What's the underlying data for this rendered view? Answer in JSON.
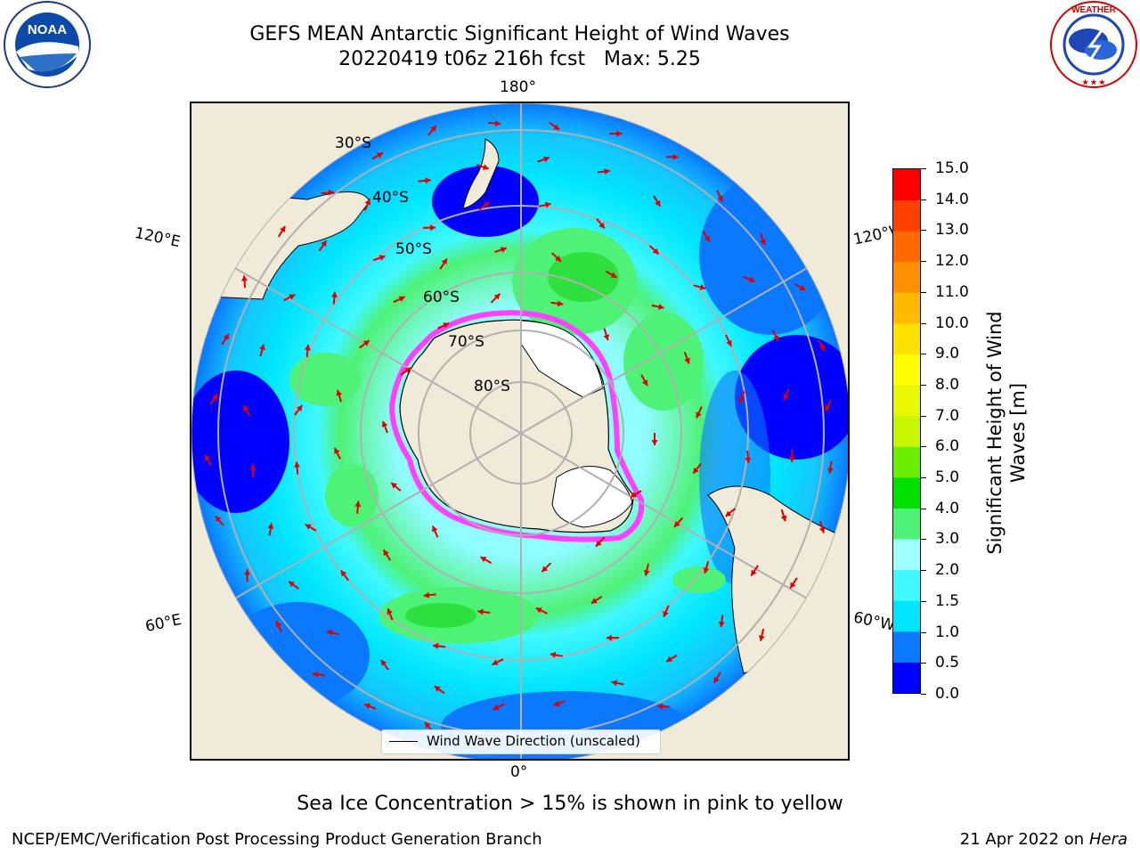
{
  "title": {
    "line1": "GEFS MEAN Antarctic Significant Height of Wind Waves",
    "line2": "20220419 t06z 216h fcst   Max: 5.25"
  },
  "map": {
    "projection": "south-polar-stereographic",
    "lon_labels": {
      "top": "180°",
      "bottom": "0°",
      "upper_left": "120°E",
      "lower_left": "60°E",
      "upper_right": "120°W",
      "lower_right": "60°W"
    },
    "lat_labels": [
      "30°S",
      "40°S",
      "50°S",
      "60°S",
      "70°S",
      "80°S"
    ],
    "legend": "Wind Wave Direction (unscaled)"
  },
  "colorbar": {
    "label": "Significant Height of Wind Waves [m]",
    "ticks": [
      "15.0",
      "14.0",
      "13.0",
      "12.0",
      "11.0",
      "10.0",
      "9.0",
      "8.0",
      "7.0",
      "6.0",
      "5.0",
      "4.0",
      "3.0",
      "2.0",
      "1.5",
      "1.0",
      "0.5",
      "0.0"
    ],
    "colors_bottom_to_top": [
      "#0000ff",
      "#0a78ff",
      "#00e5ff",
      "#40f8ff",
      "#a0ffff",
      "#4ef277",
      "#00e000",
      "#6aef00",
      "#c8f500",
      "#e8f800",
      "#ffff00",
      "#ffe100",
      "#ffba00",
      "#ff9000",
      "#ff6a00",
      "#ff4000",
      "#ff0000"
    ]
  },
  "caption": "Sea Ice Concentration > 15% is shown in pink to yellow",
  "footer": {
    "left": "NCEP/EMC/Verification Post Processing Product Generation Branch",
    "right_date": "21 Apr 2022 on",
    "right_host": "Hera"
  },
  "logos": {
    "left": "NOAA",
    "right": "NATIONAL WEATHER SERVICE"
  },
  "colors": {
    "land": "#efebd8",
    "arrow": "#e00000",
    "grid": "#b0b0b0"
  }
}
